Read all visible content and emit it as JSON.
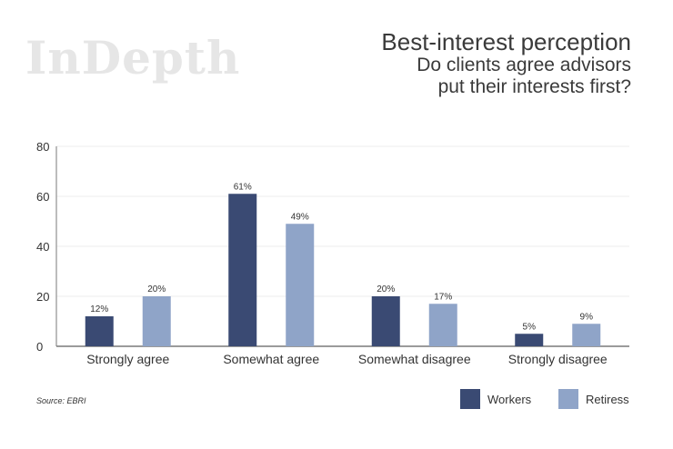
{
  "brand": "InDepth",
  "header": {
    "title": "Best-interest perception",
    "subtitle_line1": "Do clients agree advisors",
    "subtitle_line2": "put their interests first?"
  },
  "source": "Source:  EBRI",
  "colors": {
    "workers": "#3a4a73",
    "retirees": "#8fa4c8",
    "axis": "#7a7a7a",
    "grid": "#eeeeee"
  },
  "chart_data": {
    "type": "bar",
    "title": "Best-interest perception",
    "categories": [
      "Strongly agree",
      "Somewhat agree",
      "Somewhat disagree",
      "Strongly disagree"
    ],
    "series": [
      {
        "name": "Workers",
        "values": [
          12,
          61,
          20,
          5
        ],
        "labels": [
          "12%",
          "61%",
          "20%",
          "5%"
        ]
      },
      {
        "name": "Retiress",
        "values": [
          20,
          49,
          17,
          9
        ],
        "labels": [
          "20%",
          "49%",
          "17%",
          "9%"
        ]
      }
    ],
    "yticks": [
      0,
      20,
      40,
      60,
      80
    ],
    "ylim": [
      0,
      80
    ],
    "xlabel": "",
    "ylabel": "",
    "legend_position": "bottom-right"
  },
  "legend": {
    "workers": "Workers",
    "retirees": "Retiress"
  }
}
